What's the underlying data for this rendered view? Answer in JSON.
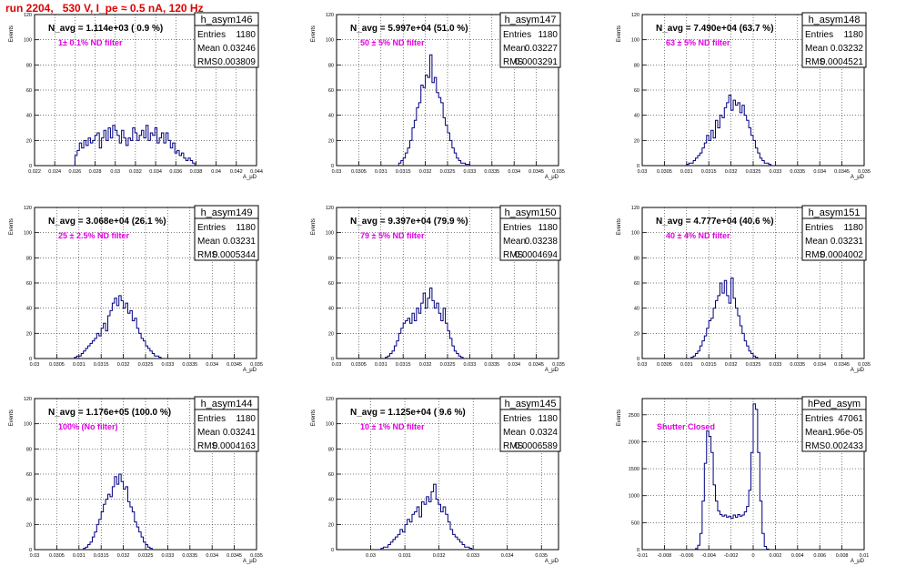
{
  "title": "run 2204,   530 V, I_pe ≈ 0.5 nA, 120 Hz",
  "chart_data": [
    {
      "type": "histogram",
      "name": "h_asym146",
      "ylabel": "Events",
      "xlabel": "A_μD",
      "navg": "N_avg = 1.114e+03 ( 0.9 %)",
      "note": "1± 0.1% ND filter",
      "entries": "1180",
      "mean": "0.03246",
      "rms": "0.003809",
      "xlim": [
        0.022,
        0.044
      ],
      "ylim": [
        0,
        120
      ],
      "xticks": [
        0.022,
        0.024,
        0.026,
        0.028,
        0.03,
        0.032,
        0.034,
        0.036,
        0.038,
        0.04,
        0.042,
        0.044
      ],
      "yticks": [
        0,
        20,
        40,
        60,
        80,
        100,
        120
      ],
      "bin_start": 0.026,
      "bin_width": 0.00022,
      "counts": [
        8,
        12,
        18,
        14,
        20,
        16,
        22,
        18,
        20,
        24,
        26,
        14,
        22,
        28,
        20,
        30,
        22,
        32,
        28,
        24,
        18,
        28,
        22,
        16,
        22,
        20,
        30,
        26,
        20,
        24,
        28,
        22,
        32,
        20,
        26,
        24,
        30,
        18,
        22,
        26,
        18,
        26,
        20,
        14,
        18,
        10,
        12,
        8,
        10,
        6,
        4,
        6,
        4,
        2
      ]
    },
    {
      "type": "histogram",
      "name": "h_asym147",
      "ylabel": "Events",
      "xlabel": "A_μD",
      "navg": "N_avg = 5.997e+04 (51.0 %)",
      "note": "50 ± 5% ND filter",
      "entries": "1180",
      "mean": "0.03227",
      "rms": "0.0003291",
      "xlim": [
        0.03,
        0.035
      ],
      "ylim": [
        0,
        120
      ],
      "xticks": [
        0.03,
        0.0305,
        0.031,
        0.0315,
        0.032,
        0.0325,
        0.033,
        0.0335,
        0.034,
        0.0345,
        0.035
      ],
      "yticks": [
        0,
        20,
        40,
        60,
        80,
        100,
        120
      ],
      "bin_start": 0.0314,
      "bin_width": 5e-05,
      "counts": [
        2,
        4,
        6,
        10,
        14,
        20,
        30,
        36,
        46,
        50,
        64,
        62,
        72,
        70,
        88,
        66,
        70,
        58,
        54,
        50,
        38,
        32,
        26,
        20,
        14,
        10,
        6,
        4,
        2,
        2,
        1,
        1
      ]
    },
    {
      "type": "histogram",
      "name": "h_asym148",
      "ylabel": "Events",
      "xlabel": "A_μD",
      "navg": "N_avg = 7.490e+04 (63.7 %)",
      "note": "63 ± 5% ND filter",
      "entries": "1180",
      "mean": "0.03232",
      "rms": "0.0004521",
      "xlim": [
        0.03,
        0.035
      ],
      "ylim": [
        0,
        120
      ],
      "xticks": [
        0.03,
        0.0305,
        0.031,
        0.0315,
        0.032,
        0.0325,
        0.033,
        0.0335,
        0.034,
        0.0345,
        0.035
      ],
      "yticks": [
        0,
        20,
        40,
        60,
        80,
        100,
        120
      ],
      "bin_start": 0.031,
      "bin_width": 5e-05,
      "counts": [
        1,
        2,
        2,
        4,
        6,
        8,
        10,
        14,
        18,
        24,
        20,
        28,
        22,
        36,
        30,
        40,
        38,
        46,
        50,
        56,
        44,
        52,
        48,
        50,
        42,
        48,
        40,
        36,
        30,
        24,
        20,
        14,
        10,
        6,
        4,
        2,
        2,
        1
      ]
    },
    {
      "type": "histogram",
      "name": "h_asym149",
      "ylabel": "Events",
      "xlabel": "A_μD",
      "navg": "N_avg = 3.068e+04 (26.1 %)",
      "note": "25 ± 2.5% ND filter",
      "entries": "1180",
      "mean": "0.03231",
      "rms": "0.0005344",
      "xlim": [
        0.03,
        0.035
      ],
      "ylim": [
        0,
        120
      ],
      "xticks": [
        0.03,
        0.0305,
        0.031,
        0.0315,
        0.032,
        0.0325,
        0.033,
        0.0335,
        0.034,
        0.0345,
        0.035
      ],
      "yticks": [
        0,
        20,
        40,
        60,
        80,
        100,
        120
      ],
      "bin_start": 0.0309,
      "bin_width": 5e-05,
      "counts": [
        1,
        2,
        2,
        4,
        6,
        8,
        10,
        12,
        14,
        16,
        20,
        18,
        24,
        28,
        22,
        34,
        38,
        44,
        48,
        42,
        50,
        46,
        40,
        44,
        36,
        38,
        30,
        32,
        24,
        20,
        16,
        14,
        10,
        8,
        6,
        4,
        2,
        2,
        1
      ]
    },
    {
      "type": "histogram",
      "name": "h_asym150",
      "ylabel": "Events",
      "xlabel": "A_μD",
      "navg": "N_avg = 9.397e+04 (79.9 %)",
      "note": "79 ± 5% ND filter",
      "entries": "1180",
      "mean": "0.03238",
      "rms": "0.0004694",
      "xlim": [
        0.03,
        0.035
      ],
      "ylim": [
        0,
        120
      ],
      "xticks": [
        0.03,
        0.0305,
        0.031,
        0.0315,
        0.032,
        0.0325,
        0.033,
        0.0335,
        0.034,
        0.0345,
        0.035
      ],
      "yticks": [
        0,
        20,
        40,
        60,
        80,
        100,
        120
      ],
      "bin_start": 0.0311,
      "bin_width": 5e-05,
      "counts": [
        1,
        2,
        4,
        6,
        10,
        14,
        20,
        24,
        28,
        30,
        32,
        28,
        36,
        30,
        40,
        36,
        44,
        52,
        40,
        48,
        56,
        46,
        40,
        44,
        36,
        30,
        40,
        28,
        22,
        16,
        10,
        6,
        4,
        2,
        1
      ]
    },
    {
      "type": "histogram",
      "name": "h_asym151",
      "ylabel": "Events",
      "xlabel": "A_μD",
      "navg": "N_avg = 4.777e+04 (40.6 %)",
      "note": "40 ± 4% ND filter",
      "entries": "1180",
      "mean": "0.03231",
      "rms": "0.0004002",
      "xlim": [
        0.03,
        0.035
      ],
      "ylim": [
        0,
        120
      ],
      "xticks": [
        0.03,
        0.0305,
        0.031,
        0.0315,
        0.032,
        0.0325,
        0.033,
        0.0335,
        0.034,
        0.0345,
        0.035
      ],
      "yticks": [
        0,
        20,
        40,
        60,
        80,
        100,
        120
      ],
      "bin_start": 0.0311,
      "bin_width": 5e-05,
      "counts": [
        1,
        2,
        4,
        6,
        10,
        14,
        18,
        24,
        30,
        32,
        40,
        46,
        50,
        60,
        52,
        62,
        50,
        44,
        64,
        48,
        40,
        34,
        26,
        20,
        14,
        10,
        6,
        4,
        2,
        1
      ]
    },
    {
      "type": "histogram",
      "name": "h_asym144",
      "ylabel": "Events",
      "xlabel": "A_μD",
      "navg": "N_avg = 1.176e+05 (100.0 %)",
      "note": "100% (No filter)",
      "entries": "1180",
      "mean": "0.03241",
      "rms": "0.0004163",
      "xlim": [
        0.03,
        0.035
      ],
      "ylim": [
        0,
        120
      ],
      "xticks": [
        0.03,
        0.0305,
        0.031,
        0.0315,
        0.032,
        0.0325,
        0.033,
        0.0335,
        0.034,
        0.0345,
        0.035
      ],
      "yticks": [
        0,
        20,
        40,
        60,
        80,
        100,
        120
      ],
      "bin_start": 0.0311,
      "bin_width": 5e-05,
      "counts": [
        1,
        2,
        4,
        6,
        10,
        14,
        20,
        24,
        30,
        36,
        40,
        44,
        42,
        50,
        58,
        52,
        60,
        54,
        48,
        50,
        38,
        34,
        30,
        22,
        18,
        14,
        10,
        6,
        4,
        2,
        1
      ]
    },
    {
      "type": "histogram",
      "name": "h_asym145",
      "ylabel": "Events",
      "xlabel": "A_μD",
      "navg": "N_avg = 1.125e+04 ( 9.6 %)",
      "note": "10 ± 1% ND filter",
      "entries": "1180",
      "mean": "0.0324",
      "rms": "0.0006589",
      "xlim": [
        0.029,
        0.0355
      ],
      "ylim": [
        0,
        120
      ],
      "xticks": [
        0.03,
        0.031,
        0.032,
        0.033,
        0.034,
        0.035
      ],
      "yticks": [
        0,
        20,
        40,
        60,
        80,
        100,
        120
      ],
      "bin_start": 0.0303,
      "bin_width": 7e-05,
      "counts": [
        1,
        2,
        2,
        4,
        6,
        8,
        10,
        12,
        16,
        14,
        20,
        24,
        22,
        28,
        30,
        34,
        26,
        38,
        36,
        42,
        38,
        46,
        52,
        40,
        36,
        30,
        34,
        28,
        22,
        16,
        12,
        10,
        8,
        6,
        4,
        2,
        2,
        1
      ]
    },
    {
      "type": "histogram",
      "name": "hPed_asym",
      "ylabel": "Events",
      "xlabel": "A_μD",
      "navg": "",
      "note": "Shutter Closed",
      "entries": "47061",
      "mean": "-1.96e-05",
      "rms": "0.002433",
      "xlim": [
        -0.01,
        0.01
      ],
      "ylim": [
        0,
        2800
      ],
      "xticks": [
        -0.01,
        -0.008,
        -0.006,
        -0.004,
        -0.002,
        0,
        0.002,
        0.004,
        0.006,
        0.008,
        0.01
      ],
      "yticks": [
        0,
        500,
        1000,
        1500,
        2000,
        2500
      ],
      "bin_start": -0.0052,
      "bin_width": 0.0002,
      "counts": [
        20,
        80,
        300,
        900,
        1600,
        2200,
        2100,
        1800,
        1200,
        900,
        720,
        650,
        620,
        640,
        600,
        620,
        580,
        640,
        600,
        650,
        620,
        640,
        700,
        800,
        1100,
        1800,
        2700,
        2600,
        1800,
        900,
        300,
        60,
        10
      ]
    }
  ]
}
